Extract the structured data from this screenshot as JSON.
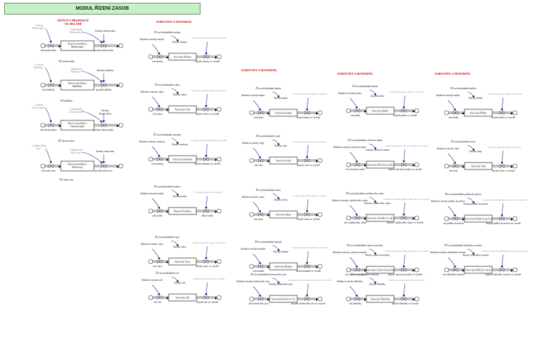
{
  "title": "MODUL ŘÍZENÍ ZÁSOB",
  "colors": {
    "title_bg": "#c6f1c6",
    "header": "#cc0000",
    "stock_border": "#222222",
    "flow": "#000000",
    "arrow": "#1a1a8c",
    "shadow": "#8c8c8c"
  },
  "headers": [
    {
      "text": "HOTOVÁ PRODUKCE\nVE SKLADĚ"
    },
    {
      "text": "SUROVINY A MATERIÁL"
    },
    {
      "text": "SUROVINY A MATERIÁL"
    },
    {
      "text": "SUROVINY A MATERIÁL"
    },
    {
      "text": "SUROVINY A MATERIÁL"
    }
  ],
  "products": [
    {
      "name": "Hotová produkce\nMedovniky",
      "shadow_left": "<Celkem\nMedovniky>",
      "shadow_top": "<Objednávky\nMedovniky>",
      "outflow": "Zásoby medovniku",
      "inflow": "tok medovniku",
      "outflow_rate": "prodej medovniku",
      "order": "NŽ medovniku"
    },
    {
      "name": "Hotová produkce\nBáběnky",
      "shadow_left": "<Celkem\nBáběnky>",
      "shadow_top": "<Objednávky\nBáběnky>",
      "outflow": "Zásoby babětek",
      "inflow": "tok babětek",
      "outflow_rate": "prodej babětek",
      "order": "NŽ babětek"
    },
    {
      "name": "Hotová produkce\nCheesecakes",
      "shadow_left": "<Celkem\nCheesecakes>",
      "shadow_top": "<Objednávky\nCheesecakes>",
      "outflow": "Zásoby\ncheesecakes",
      "inflow": "tok cheesecakes",
      "outflow_rate": "prodej cheesecakes",
      "order": "NŽ cheesecakes"
    },
    {
      "name": "Hotová produkce\nMini rezy",
      "shadow_left": "<Celkem Mini\nrezy>",
      "shadow_top": "<Objednávky\nMini rezy>",
      "outflow": "Zásoby mini rezu",
      "inflow": "tok mini rezu",
      "outflow_rate": "prodej mini rezu",
      "order": "NŽ mini rezu"
    }
  ],
  "materials": [
    {
      "stock": "Surovina Mouka",
      "order": "ŽN na doskladnění mouky",
      "lead": "Skladové zásoby mouky",
      "res": "Zásoby mouky",
      "inflow": "tok mouky",
      "outflow": "úbytek mouky ve výrobě",
      "shadow": "<Celková spotřeba mouky ve výrobě>"
    },
    {
      "name_col": 1,
      "stock": "Surovina Cukr",
      "order": "ŽN na doskladnění cukru",
      "lead": "Skladové zásoby cukru",
      "res": "Zásoby cukru",
      "inflow": "tok cukru",
      "outflow": "úbytek cukru ve výrobě",
      "shadow": "<Celková spotřeba cukru ve výrobě>"
    },
    {
      "stock": "Surovina Máslo",
      "order": "ŽN na doskladnění másla",
      "lead": "Skladové zásoby másla",
      "res": "Zásoby másla",
      "inflow": "tok másla",
      "outflow": "úbytek másla ve výrobě",
      "shadow": "<Celková spotřeba másla ve výrobě>"
    },
    {
      "stock": "Surovina Smetana",
      "order": "ŽN na doskladnění smetany",
      "lead": "Skladové zásoby smetany",
      "res": "Zásoby smetany",
      "inflow": "tok smetany",
      "outflow": "úbytek smetany ve výrobě",
      "shadow": "<Celková spotřeba smetany ve výrobě>"
    },
    {
      "stock": "Surovina Vejce",
      "order": "ŽN na doskladnění vajec",
      "lead": "Skladové zásoby vajec",
      "res": "Zásoby vajec",
      "inflow": "tok vajec",
      "outflow": "úbytek vajec ve výrobě",
      "shadow": "<Celková spotřeba vajec ve výrobě>"
    },
    {
      "stock": "Materiál Krabice",
      "order": "ŽN na doskladnění krabice",
      "lead": "Skladové zásoby krabic",
      "res": "Zásoby krabic",
      "inflow": "tok krabic",
      "outflow": "odbyt krabic",
      "shadow": "<Potřebné krabice na zásoby>"
    },
    {
      "stock": "Surovina Kakao",
      "order": "ŽN na doskladnění kakaa",
      "lead": "Skladové zásoby kakaa",
      "res": "Zásoby kakaa",
      "inflow": "tok kakaa",
      "outflow": "úbytek kakaa ve výrobě",
      "shadow": "<Celková spotřeba kakaa ve výrobě>"
    },
    {
      "stock": "Surovina Mléko",
      "order": "ŽN na doskladnění mléka",
      "lead": "Skladové zásoby mléka",
      "res": "Zásoby mléka",
      "inflow": "tok mléka",
      "outflow": "úbytek mléka ve výrobě",
      "shadow": "<Celková spotřeba mléka ve výrobě>"
    },
    {
      "stock": "Surovina Soda",
      "order": "ŽN na doskladnění sody",
      "lead": "Skladové zásoby sody",
      "res": "Zásoby sody",
      "inflow": "tok sody",
      "outflow": "úbytek sody ve výrobě",
      "shadow": "<Celková spotřeba sody ve výrobě>"
    },
    {
      "stock": "Surovina Sůl",
      "order": "ŽN na doskladnění soli",
      "lead": "Skladové zásoby soli",
      "res": "Zásoby soli",
      "inflow": "tok soli",
      "outflow": "úbytek soli ve výrobě",
      "shadow": "<Celková spotřeba soli ve výrobě>"
    },
    {
      "stock": "Surovina Rum",
      "order": "ŽN na doskladnění rumu",
      "lead": "Skladové zásoby rumu",
      "res": "Zásoby rumu",
      "inflow": "tok rumu",
      "outflow": "úbytek rumu ve výrobě",
      "shadow": "<Celková spotřeba rumu ve výrobě>"
    },
    {
      "stock": "Surovina Banány",
      "order": "ŽN na doskladnění banánů",
      "lead": "Skladové zásoby banánů",
      "res": "Zásoby banánů",
      "inflow": "tok banánů",
      "outflow": "úbytek banánů ve výrobě",
      "shadow": "<Celková spotřeba banánů ve výrobě>"
    },
    {
      "stock": "Surovina Krémový sýr",
      "order": "ŽN na doskladnění krémového sýru",
      "lead": "Skladové zásoby krémového sýru",
      "res": "Zásoby krémového sýru",
      "inflow": "tok krémového sýru",
      "outflow": "úbytek krémového sýru ve výrobě",
      "shadow": "<Celková spotřeba krémového sýru ve výrobě>"
    },
    {
      "stock": "Surovina Ořechová směs",
      "order": "ŽN na doskladnění ořechové směsi",
      "lead": "Skladové zásoby ořechové směsi",
      "res": "Zásoby ořechové směsi",
      "inflow": "tok ořechové směsi",
      "outflow": "úbytek ořechové směsi ve výrobě",
      "shadow": "<Celková spotřeba ořechové směsi ve výrobě>"
    },
    {
      "stock": "Surovina Vanilkový cukr",
      "order": "ŽN na doskladnění vanilkového cukru",
      "lead": "Skladové zásoby vanilkového cukru",
      "res": "Zásoby vanilkového cukru",
      "inflow": "tok vanilkového cukru",
      "outflow": "úbytek vanilkového cukru ve výrobě",
      "shadow": "<Celková spotřeba vanilkového cukru ve výrobě>"
    },
    {
      "stock": "Surovina Cukrová moučka",
      "order": "ŽN na doskladnění cukrové moučky",
      "lead": "Skladové zásoby cukrové moučky",
      "res": "Zásoby cukrové moučky",
      "inflow": "tok cukrové moučky",
      "outflow": "úbytek cukrové moučky ve výrobě",
      "shadow": "<Celková spotřeba cukrové moučky ve výrobě>"
    },
    {
      "stock": "Surovina Šlehačka",
      "order": "ŽN na doskladnění šlehačky",
      "lead": "Skladové zásoby šlehačky",
      "res": "Zásoby šlehačky",
      "inflow": "tok šlehačky",
      "outflow": "úbytek šlehačky ve výrobě",
      "shadow": "<Celková spotřeba šlehačky ve výrobě>"
    },
    {
      "stock": "Surovina Olej",
      "order": "ŽN na doskladnění oleje",
      "lead": "Skladové zásoby oleje",
      "res": "Zásoby oleje",
      "inflow": "tok oleje",
      "outflow": "úbytek oleje ve výrobě",
      "shadow": "<Celková spotřeba oleje ve výrobě>"
    },
    {
      "stock": "Surovina Prášek do pečiva",
      "order": "ŽN na doskladnění prášku do pečiva",
      "lead": "Skladové zásoby prášku do pečiva",
      "res": "Zásoby prášku do pečiva",
      "inflow": "tok prášku do pečiva",
      "outflow": "úbytek prášku do pečiva ve výrobě",
      "shadow": "<Celková spotřeba prášku do pečiva ve výrobě>"
    },
    {
      "stock": "Surovina Mléčný tvaroh",
      "order": "ŽN na doskladnění mléčného tvarohu",
      "lead": "Skladové zásoby mléčného tvarohu",
      "res": "Zásoby mléčného tvarohu",
      "inflow": "tok mléčného tvarohu",
      "outflow": "úbytek mléčného tvarohu ve výrobě",
      "shadow": "<Celková spotřeba mléčného tvarohu ve výrobě>"
    }
  ]
}
